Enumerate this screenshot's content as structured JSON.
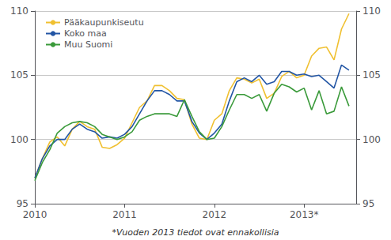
{
  "chart_data": {
    "type": "line",
    "annotations": [
      "*Vuoden 2013 tiedot ovat ennakollisia"
    ],
    "x": [
      2010,
      2010.0833333333333,
      2010.1666666666667,
      2010.25,
      2010.3333333333333,
      2010.4166666666667,
      2010.5,
      2010.5833333333333,
      2010.6666666666667,
      2010.75,
      2010.8333333333333,
      2010.9166666666667,
      2011,
      2011.0833333333333,
      2011.1666666666667,
      2011.25,
      2011.3333333333333,
      2011.4166666666667,
      2011.5,
      2011.5833333333333,
      2011.6666666666667,
      2011.75,
      2011.8333333333333,
      2011.9166666666667,
      2012,
      2012.0833333333333,
      2012.1666666666667,
      2012.25,
      2012.3333333333333,
      2012.4166666666667,
      2012.5,
      2012.5833333333333,
      2012.6666666666667,
      2012.75,
      2012.8333333333333,
      2012.9166666666667,
      2013,
      2013.0833333333333,
      2013.1666666666667,
      2013.25,
      2013.3333333333333,
      2013.4166666666667,
      2013.5
    ],
    "series": [
      {
        "name": "Pääkaupunkiseutu",
        "color": "#f0c030",
        "values": [
          97.0,
          98.5,
          99.8,
          100.2,
          99.5,
          100.8,
          101.4,
          101.0,
          100.8,
          99.4,
          99.3,
          99.6,
          100.1,
          101.3,
          102.5,
          103.0,
          104.2,
          104.2,
          103.8,
          103.2,
          103.1,
          101.2,
          100.1,
          100.0,
          101.5,
          102.0,
          103.8,
          104.8,
          104.7,
          104.4,
          104.7,
          103.2,
          103.6,
          104.9,
          105.3,
          104.8,
          105.0,
          106.5,
          107.1,
          107.2,
          106.2,
          108.6,
          109.8
        ]
      },
      {
        "name": "Koko maa",
        "color": "#2255a4",
        "values": [
          97.0,
          98.5,
          99.5,
          100.0,
          100.0,
          100.8,
          101.2,
          100.8,
          100.6,
          100.1,
          100.2,
          100.1,
          100.4,
          101.0,
          102.0,
          103.0,
          103.8,
          103.8,
          103.5,
          103.0,
          103.0,
          101.4,
          100.5,
          100.0,
          100.5,
          101.2,
          103.0,
          104.5,
          104.8,
          104.5,
          105.0,
          104.3,
          104.5,
          105.3,
          105.3,
          105.0,
          105.1,
          104.9,
          105.0,
          104.5,
          104.0,
          105.8,
          105.4
        ]
      },
      {
        "name": "Muu Suomi",
        "color": "#3a9a3a",
        "values": [
          96.8,
          98.2,
          99.2,
          100.5,
          101.0,
          101.3,
          101.4,
          101.3,
          101.0,
          100.4,
          100.2,
          100.0,
          100.2,
          100.6,
          101.5,
          101.8,
          102.0,
          102.0,
          102.0,
          101.8,
          103.1,
          101.8,
          100.6,
          100.0,
          100.1,
          101.0,
          102.3,
          103.5,
          103.5,
          103.2,
          103.5,
          102.2,
          103.6,
          104.3,
          104.1,
          103.7,
          104.0,
          102.3,
          103.8,
          102.0,
          102.2,
          104.1,
          102.6
        ]
      }
    ],
    "xlim": [
      2010,
      2013.58
    ],
    "xticks": [
      2010,
      2011,
      2012,
      {
        "value": 2013,
        "label": "2013*"
      }
    ],
    "ylim": [
      95,
      110
    ],
    "yticks": [
      95,
      100,
      105,
      110
    ],
    "y2lim": [
      95,
      110
    ],
    "y2ticks": [
      95,
      100,
      105,
      110
    ],
    "grid": true,
    "legend": "upper left"
  }
}
